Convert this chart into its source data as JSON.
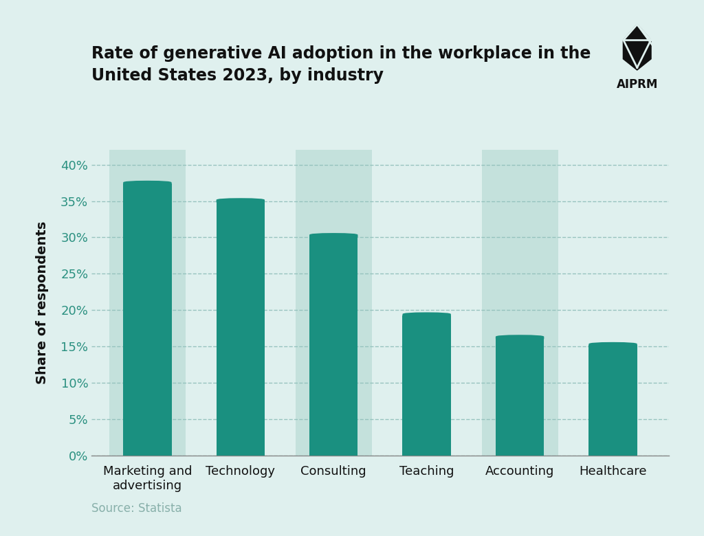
{
  "title_line1": "Rate of generative AI adoption in the workplace in the",
  "title_line2": "United States 2023, by industry",
  "categories": [
    "Marketing and\nadvertising",
    "Technology",
    "Consulting",
    "Teaching",
    "Accounting",
    "Healthcare"
  ],
  "values": [
    37.8,
    35.4,
    30.6,
    19.7,
    16.6,
    15.6
  ],
  "bar_color": "#1a9080",
  "bg_highlight_color": "#b2d8d0",
  "bg_highlight_alpha": 0.6,
  "background_color": "#dff0ee",
  "ylabel": "Share of respondents",
  "yticks": [
    0,
    5,
    10,
    15,
    20,
    25,
    30,
    35,
    40
  ],
  "ytick_labels": [
    "0%",
    "5%",
    "10%",
    "15%",
    "20%",
    "25%",
    "30%",
    "35%",
    "40%"
  ],
  "source_text": "Source: Statista",
  "title_fontsize": 17,
  "axis_fontsize": 13,
  "tick_fontsize": 13,
  "source_fontsize": 12,
  "ylabel_fontsize": 14,
  "tick_color": "#2a9080",
  "grid_color": "#90bfba",
  "logo_text": "AIPRM",
  "ylim": [
    0,
    42
  ],
  "highlight_indices": [
    0,
    2,
    4
  ],
  "bar_width": 0.52
}
